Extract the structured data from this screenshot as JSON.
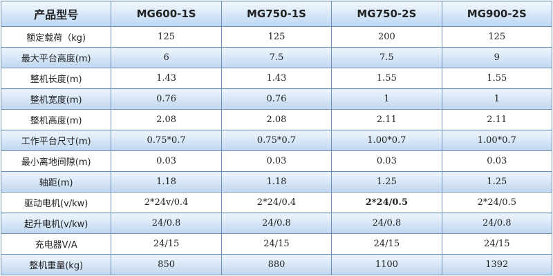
{
  "table": {
    "header": [
      "产品型号",
      "MG600-1S",
      "MG750-1S",
      "MG750-2S",
      "MG900-2S"
    ],
    "rows": [
      [
        "额定载荷（kg)",
        "125",
        "125",
        "200",
        "125"
      ],
      [
        "最大平台高度(m)",
        "6",
        "7.5",
        "7.5",
        "9"
      ],
      [
        "整机长度(m)",
        "1.43",
        "1.43",
        "1.55",
        "1.55"
      ],
      [
        "整机宽度(m)",
        "0.76",
        "0.76",
        "1",
        "1"
      ],
      [
        "整机高度(m)",
        "2.08",
        "2.08",
        "2.11",
        "2.11"
      ],
      [
        "工作平台尺寸(m)",
        "0.75*0.7",
        "0.75*0.7",
        "1.00*0.7",
        "1.00*0.7"
      ],
      [
        "最小离地间隙(m)",
        "0.03",
        "0.03",
        "0.03",
        "0.03"
      ],
      [
        "轴距(m)",
        "1.18",
        "1.18",
        "1.25",
        "1.25"
      ],
      [
        "驱动电机(v/kw)",
        "2*24v/0.4",
        "2*24/0.4",
        "2*24/0.5",
        "2*24/0.5"
      ],
      [
        "起升电机(v/kw)",
        "24/0.8",
        "24/0.8",
        "24/0.8",
        "24/0.8"
      ],
      [
        "充电器V/A",
        "24/15",
        "24/15",
        "24/15",
        "24/15"
      ],
      [
        "整机重量(kg)",
        "850",
        "880",
        "1100",
        "1392"
      ]
    ]
  }
}
